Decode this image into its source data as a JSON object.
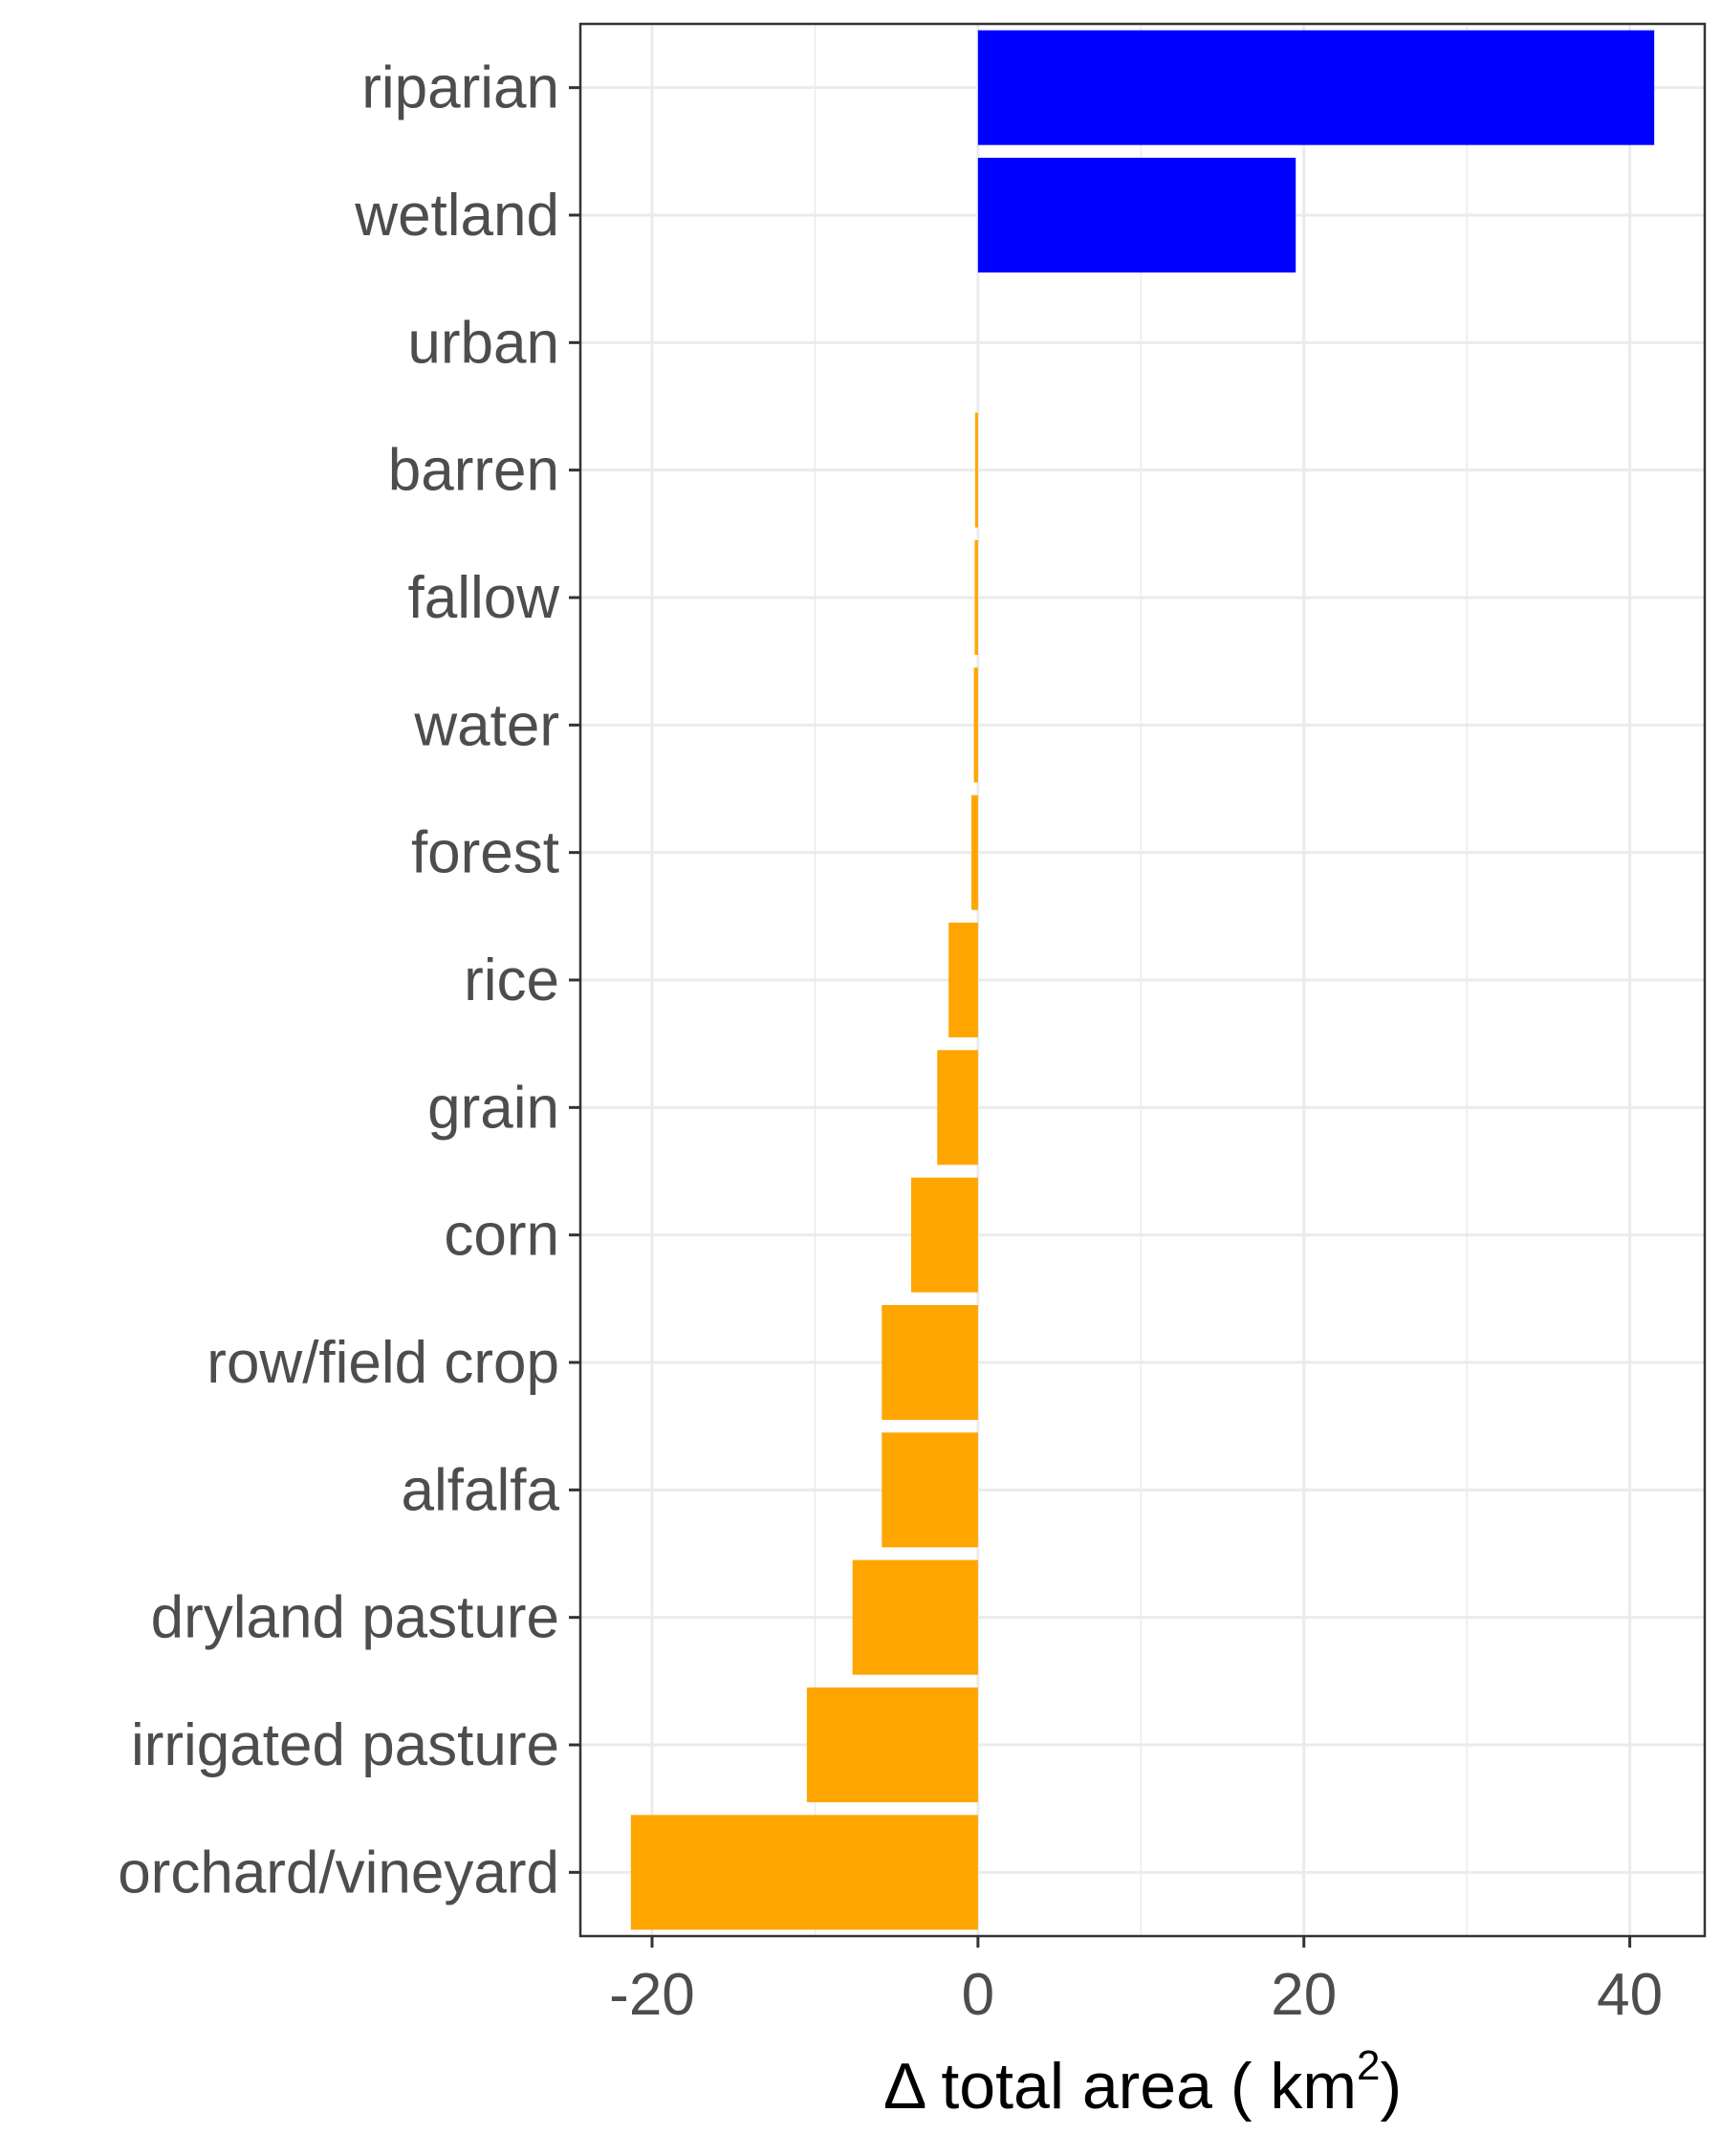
{
  "chart_data": {
    "type": "bar",
    "orientation": "horizontal",
    "categories": [
      "riparian",
      "wetland",
      "urban",
      "barren",
      "fallow",
      "water",
      "forest",
      "rice",
      "grain",
      "corn",
      "row/field crop",
      "alfalfa",
      "dryland pasture",
      "irrigated pasture",
      "orchard/vineyard"
    ],
    "values": [
      41.5,
      19.5,
      0,
      -0.15,
      -0.2,
      -0.25,
      -0.4,
      -1.8,
      -2.5,
      -4.1,
      -5.9,
      -5.9,
      -7.7,
      -10.5,
      -21.3
    ],
    "bar_colors": {
      "positive": "#0000FF",
      "negative": "#FFA500"
    },
    "title": "",
    "xlabel": "Δ total area ( km",
    "xlabel_superscript": "2",
    "xlabel_close": ")",
    "ylabel": "",
    "xlim": [
      -24.4,
      44.6
    ],
    "xticks": [
      -20,
      0,
      20,
      40
    ],
    "xtick_labels": [
      "-20",
      "0",
      "20",
      "40"
    ],
    "grid": true,
    "legend": "none",
    "colors": {
      "grid": "#EBEBEB",
      "panel_border": "#333333",
      "label_text": "#4D4D4D"
    }
  }
}
